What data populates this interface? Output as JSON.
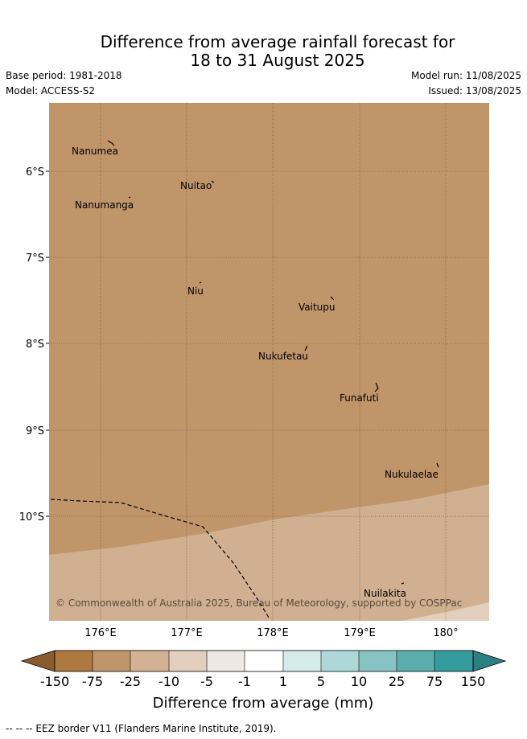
{
  "title_line1": "Difference from average rainfall forecast for",
  "title_line2": "18 to 31 August 2025",
  "base_period": "Base period: 1981-2018",
  "model": "Model: ACCESS-S2",
  "model_run": "Model run: 11/08/2025",
  "issued": "Issued: 13/08/2025",
  "map": {
    "lat_labels": [
      "6°S",
      "7°S",
      "8°S",
      "9°S",
      "10°S"
    ],
    "lon_labels": [
      "176°E",
      "177°E",
      "178°E",
      "179°E",
      "180°"
    ],
    "islands": [
      "Nanumea",
      "Nuitao",
      "Nanumanga",
      "Niu",
      "Vaitupu",
      "Nukufetau",
      "Funafuti",
      "Nukulaelae",
      "Nuilakita"
    ],
    "copyright": "© Commonwealth of Australia 2025, Bureau of Meteorology, supported by COSPPac",
    "dominant_fill": "#c0956a",
    "southern_fill": "#d1b092"
  },
  "colorbar": {
    "ticks": [
      "-150",
      "-75",
      "-25",
      "-10",
      "-5",
      "-1",
      "1",
      "5",
      "10",
      "25",
      "75",
      "150"
    ],
    "colors": [
      "#8a5b2c",
      "#ae7841",
      "#c0956a",
      "#d3b294",
      "#e3cfbd",
      "#ede8e4",
      "#ffffff",
      "#d5ebea",
      "#aed8d8",
      "#88c3c3",
      "#5aaeae",
      "#349c9c",
      "#2c7f80"
    ],
    "label": "Difference from average (mm)"
  },
  "footnote": "-- -- -- EEZ border V11 (Flanders Marine Institute, 2019)."
}
